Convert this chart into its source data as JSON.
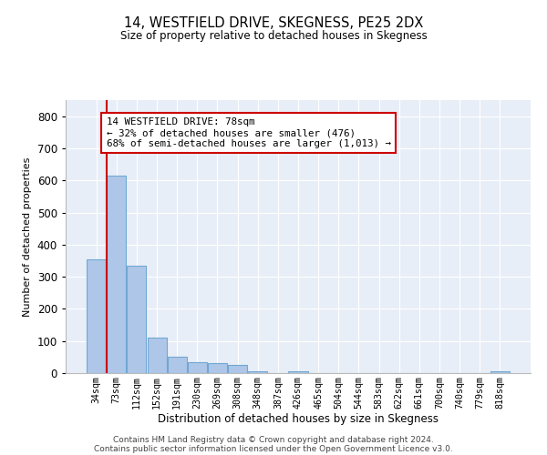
{
  "title": "14, WESTFIELD DRIVE, SKEGNESS, PE25 2DX",
  "subtitle": "Size of property relative to detached houses in Skegness",
  "xlabel": "Distribution of detached houses by size in Skegness",
  "ylabel": "Number of detached properties",
  "footer_line1": "Contains HM Land Registry data © Crown copyright and database right 2024.",
  "footer_line2": "Contains public sector information licensed under the Open Government Licence v3.0.",
  "bin_labels": [
    "34sqm",
    "73sqm",
    "112sqm",
    "152sqm",
    "191sqm",
    "230sqm",
    "269sqm",
    "308sqm",
    "348sqm",
    "387sqm",
    "426sqm",
    "465sqm",
    "504sqm",
    "544sqm",
    "583sqm",
    "622sqm",
    "661sqm",
    "700sqm",
    "740sqm",
    "779sqm",
    "818sqm"
  ],
  "bar_values": [
    355,
    615,
    335,
    110,
    50,
    35,
    30,
    25,
    5,
    0,
    5,
    0,
    0,
    0,
    0,
    0,
    0,
    0,
    0,
    0,
    5
  ],
  "bar_color": "#aec6e8",
  "bar_edge_color": "#6fa8d4",
  "bg_color": "#e8eef7",
  "grid_color": "#ffffff",
  "vline_x_index": 1,
  "vline_color": "#cc0000",
  "annotation_text": "14 WESTFIELD DRIVE: 78sqm\n← 32% of detached houses are smaller (476)\n68% of semi-detached houses are larger (1,013) →",
  "annotation_box_color": "#cc0000",
  "ylim": [
    0,
    850
  ],
  "yticks": [
    0,
    100,
    200,
    300,
    400,
    500,
    600,
    700,
    800
  ],
  "figsize": [
    6.0,
    5.0
  ],
  "dpi": 100
}
